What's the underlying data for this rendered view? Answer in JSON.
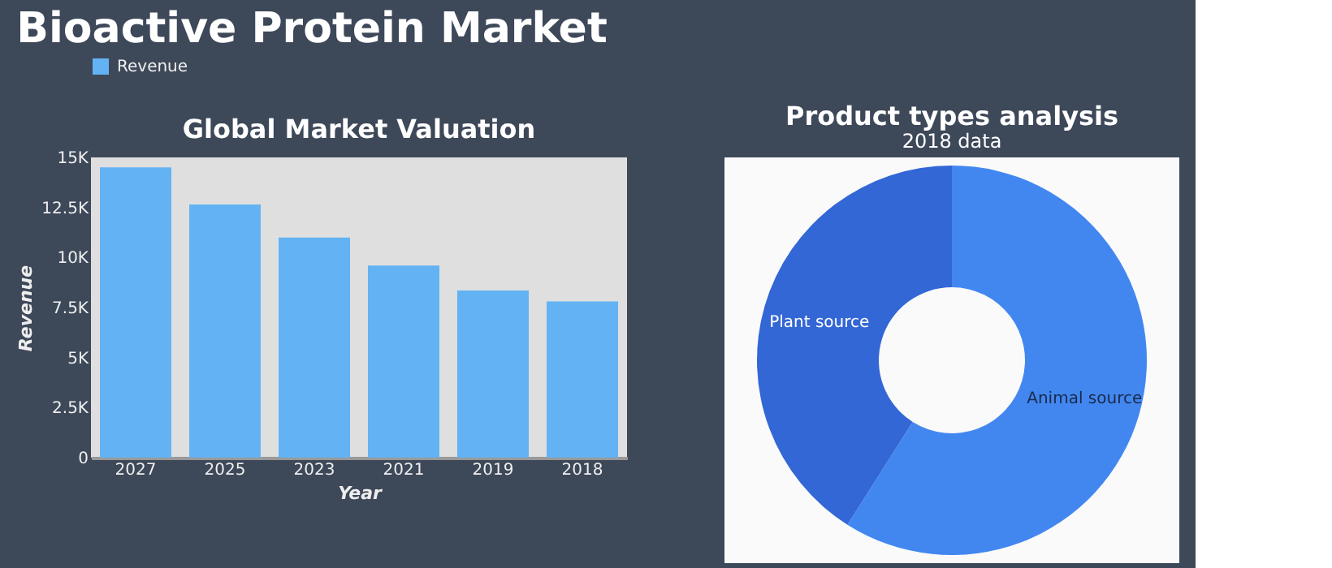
{
  "chart_data": [
    {
      "type": "bar",
      "title": "Global Market Valuation",
      "annotations": [
        "Bioactive Protein Market"
      ],
      "xlabel": "Year",
      "ylabel": "Revenue",
      "categories": [
        "2027",
        "2025",
        "2023",
        "2021",
        "2019",
        "2018"
      ],
      "series": [
        {
          "name": "Revenue",
          "color": "#63b3f4",
          "values": [
            14500,
            12650,
            11000,
            9600,
            8350,
            7800
          ]
        }
      ],
      "ylim": [
        0,
        15000
      ],
      "yticks": [
        0,
        {
          "value": 2500,
          "label": "2.5K"
        },
        {
          "value": 5000,
          "label": "5K"
        },
        {
          "value": 7500,
          "label": "7.5K"
        },
        {
          "value": 10000,
          "label": "10K"
        },
        {
          "value": 12500,
          "label": "12.5K"
        },
        {
          "value": 15000,
          "label": "15K"
        }
      ],
      "grid": false,
      "legend": "top left"
    },
    {
      "type": "donut",
      "title": "Product types analysis",
      "annotations": [
        "2018 data"
      ],
      "categories": [
        "Animal source",
        "Plant source"
      ],
      "values": [
        59,
        41
      ],
      "colors": [
        "#4287f0",
        "#3367d6"
      ],
      "legend": false
    }
  ]
}
